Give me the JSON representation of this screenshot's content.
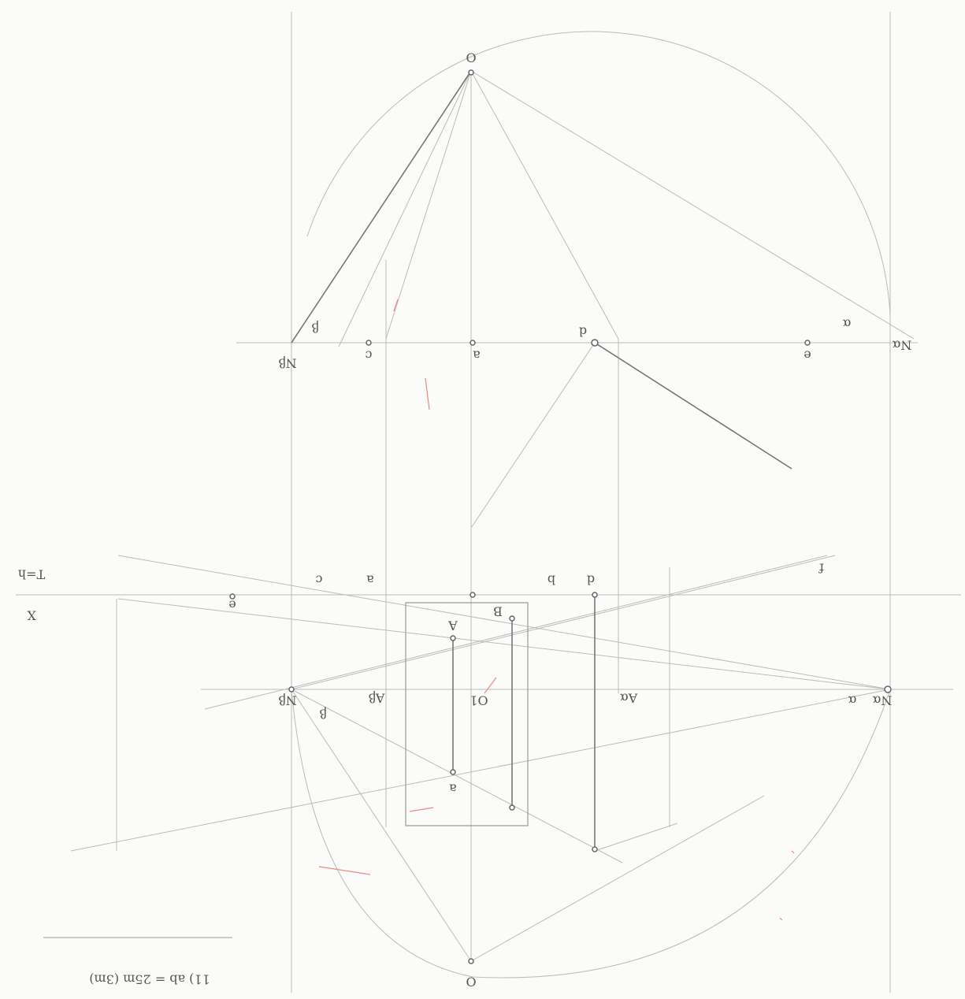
{
  "top_view": {
    "station": "O",
    "vanishing_beta": "Nβ",
    "c": "c",
    "a": "a",
    "d": "d",
    "e": "e",
    "vanishing_alpha": "Nα",
    "angle_beta": "β",
    "angle_alpha": "α"
  },
  "picture_plane": {
    "x": "X",
    "ground": "T=h",
    "e": "e",
    "c": "c",
    "a": "a",
    "b": "b",
    "d": "d",
    "f": "f"
  },
  "horizon": {
    "vanishing_beta": "Nβ",
    "a_beta": "Aβ",
    "main_point": "O1",
    "a_alpha": "Aα",
    "vanishing_alpha": "Nα",
    "angle_beta": "β",
    "angle_alpha": "α"
  },
  "perspective": {
    "a_top": "A",
    "a_bottom": "a",
    "b": "B"
  },
  "note": "11) ab = 25m (3m)",
  "station_bottom": "O"
}
